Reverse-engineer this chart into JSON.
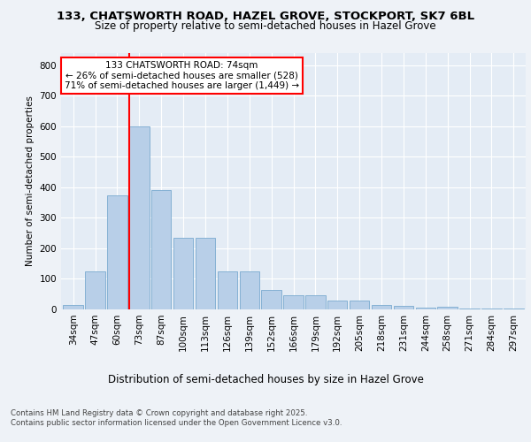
{
  "title1": "133, CHATSWORTH ROAD, HAZEL GROVE, STOCKPORT, SK7 6BL",
  "title2": "Size of property relative to semi-detached houses in Hazel Grove",
  "xlabel": "Distribution of semi-detached houses by size in Hazel Grove",
  "ylabel": "Number of semi-detached properties",
  "categories": [
    "34sqm",
    "47sqm",
    "60sqm",
    "73sqm",
    "87sqm",
    "100sqm",
    "113sqm",
    "126sqm",
    "139sqm",
    "152sqm",
    "166sqm",
    "179sqm",
    "192sqm",
    "205sqm",
    "218sqm",
    "231sqm",
    "244sqm",
    "258sqm",
    "271sqm",
    "284sqm",
    "297sqm"
  ],
  "values": [
    15,
    125,
    375,
    600,
    390,
    235,
    235,
    125,
    125,
    65,
    45,
    45,
    30,
    30,
    15,
    12,
    5,
    8,
    3,
    3,
    3
  ],
  "bar_color": "#b8cfe8",
  "bar_edge_color": "#7aaad0",
  "annotation_text": "133 CHATSWORTH ROAD: 74sqm\n← 26% of semi-detached houses are smaller (528)\n71% of semi-detached houses are larger (1,449) →",
  "annotation_box_color": "white",
  "annotation_box_edge_color": "red",
  "vline_color": "red",
  "ylim": [
    0,
    840
  ],
  "yticks": [
    0,
    100,
    200,
    300,
    400,
    500,
    600,
    700,
    800
  ],
  "footer_line1": "Contains HM Land Registry data © Crown copyright and database right 2025.",
  "footer_line2": "Contains public sector information licensed under the Open Government Licence v3.0.",
  "bg_color": "#eef2f7",
  "plot_bg_color": "#e4ecf5"
}
